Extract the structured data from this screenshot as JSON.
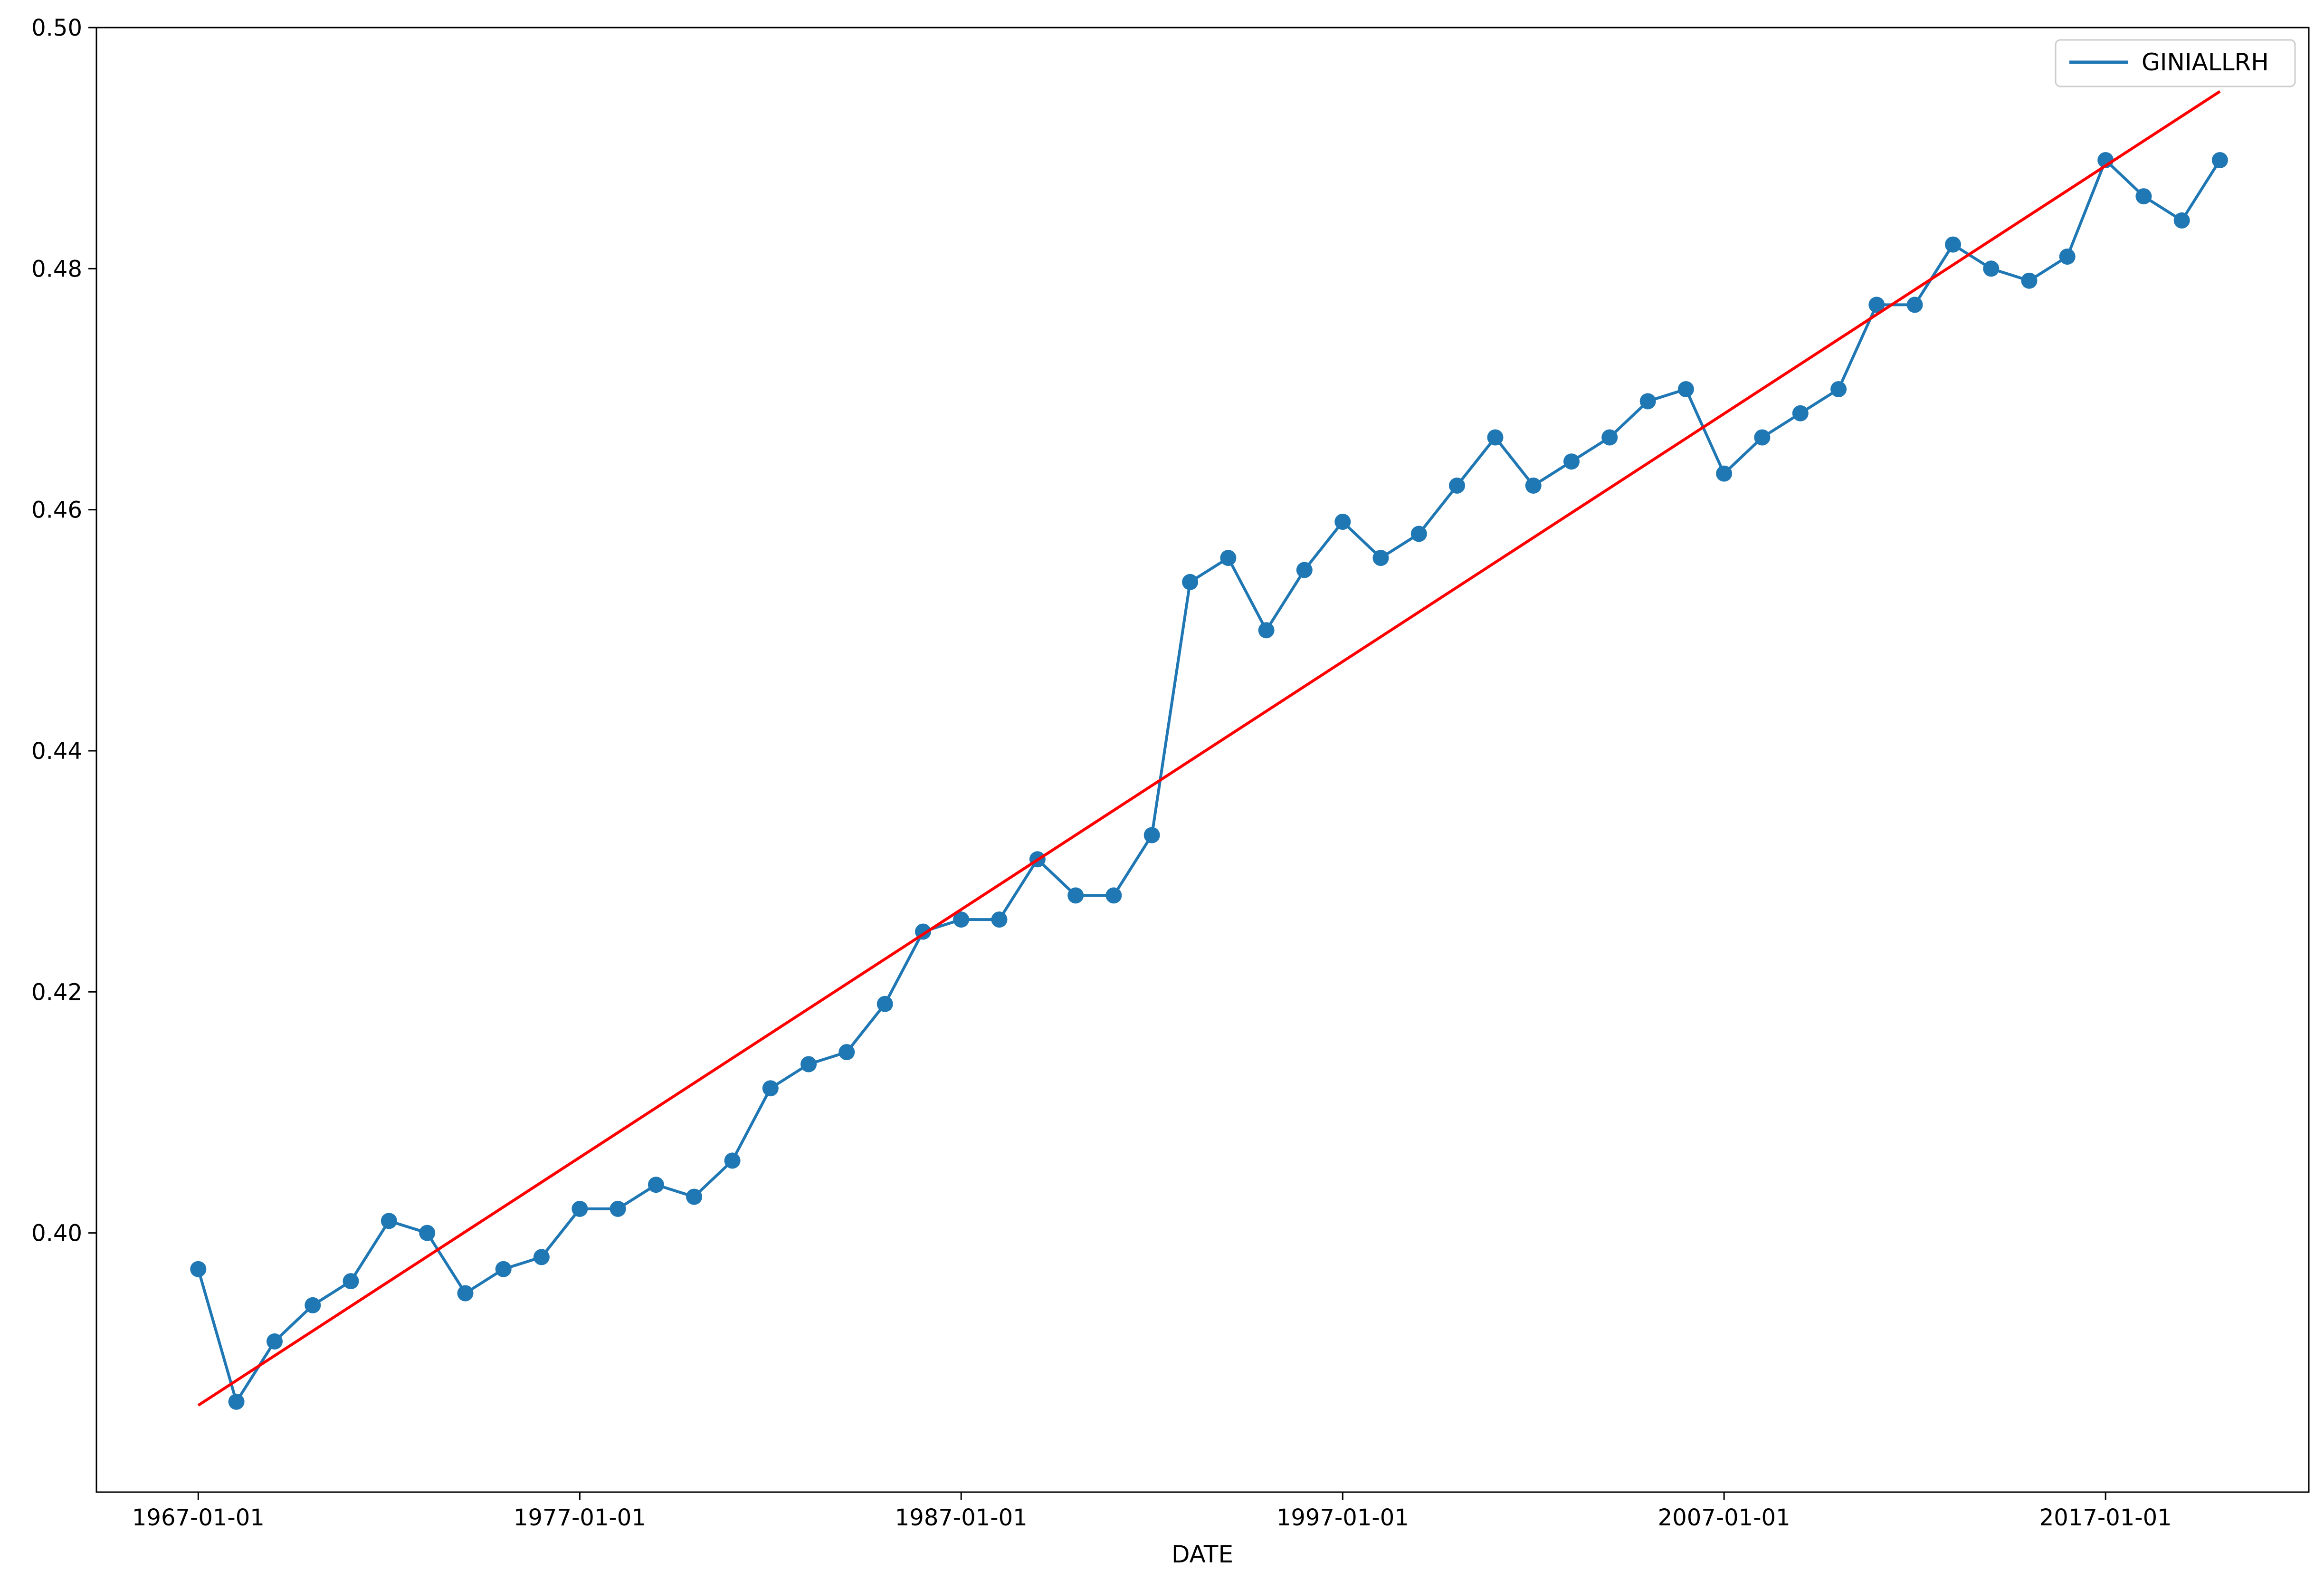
{
  "chart_data": {
    "type": "line",
    "title": "",
    "xlabel": "DATE",
    "ylabel": "",
    "x_tick_labels": [
      "1967-01-01",
      "1977-01-01",
      "1987-01-01",
      "1997-01-01",
      "2007-01-01",
      "2017-01-01"
    ],
    "y_tick_labels": [
      "0.40",
      "0.42",
      "0.44",
      "0.46",
      "0.48",
      "0.50"
    ],
    "xlim": [
      "1964-05-01",
      "2022-05-01"
    ],
    "ylim": [
      0.3785,
      0.5
    ],
    "grid": false,
    "legend": {
      "placement": "top-right",
      "entries": [
        "GINIALLRH"
      ]
    },
    "series": [
      {
        "name": "GINIALLRH",
        "color": "#1f77b4",
        "marker": "circle",
        "x": [
          "1967-01-01",
          "1968-01-01",
          "1969-01-01",
          "1970-01-01",
          "1971-01-01",
          "1972-01-01",
          "1973-01-01",
          "1974-01-01",
          "1975-01-01",
          "1976-01-01",
          "1977-01-01",
          "1978-01-01",
          "1979-01-01",
          "1980-01-01",
          "1981-01-01",
          "1982-01-01",
          "1983-01-01",
          "1984-01-01",
          "1985-01-01",
          "1986-01-01",
          "1987-01-01",
          "1988-01-01",
          "1989-01-01",
          "1990-01-01",
          "1991-01-01",
          "1992-01-01",
          "1993-01-01",
          "1994-01-01",
          "1995-01-01",
          "1996-01-01",
          "1997-01-01",
          "1998-01-01",
          "1999-01-01",
          "2000-01-01",
          "2001-01-01",
          "2002-01-01",
          "2003-01-01",
          "2004-01-01",
          "2005-01-01",
          "2006-01-01",
          "2007-01-01",
          "2008-01-01",
          "2009-01-01",
          "2010-01-01",
          "2011-01-01",
          "2012-01-01",
          "2013-01-01",
          "2014-01-01",
          "2015-01-01",
          "2016-01-01",
          "2017-01-01",
          "2018-01-01",
          "2019-01-01",
          "2020-01-01"
        ],
        "values": [
          0.397,
          0.386,
          0.391,
          0.394,
          0.396,
          0.401,
          0.4,
          0.395,
          0.397,
          0.398,
          0.402,
          0.402,
          0.404,
          0.403,
          0.406,
          0.412,
          0.414,
          0.415,
          0.419,
          0.425,
          0.426,
          0.426,
          0.431,
          0.428,
          0.428,
          0.433,
          0.454,
          0.456,
          0.45,
          0.455,
          0.459,
          0.456,
          0.458,
          0.462,
          0.466,
          0.462,
          0.464,
          0.466,
          0.469,
          0.47,
          0.463,
          0.466,
          0.468,
          0.47,
          0.477,
          0.477,
          0.482,
          0.48,
          0.479,
          0.481,
          0.489,
          0.486,
          0.484,
          0.489
        ]
      },
      {
        "name": "",
        "color": "#ff0000",
        "type": "trend-line",
        "x": [
          "1967-01-01",
          "2020-01-01"
        ],
        "values": [
          0.3857,
          0.4947
        ]
      }
    ]
  }
}
